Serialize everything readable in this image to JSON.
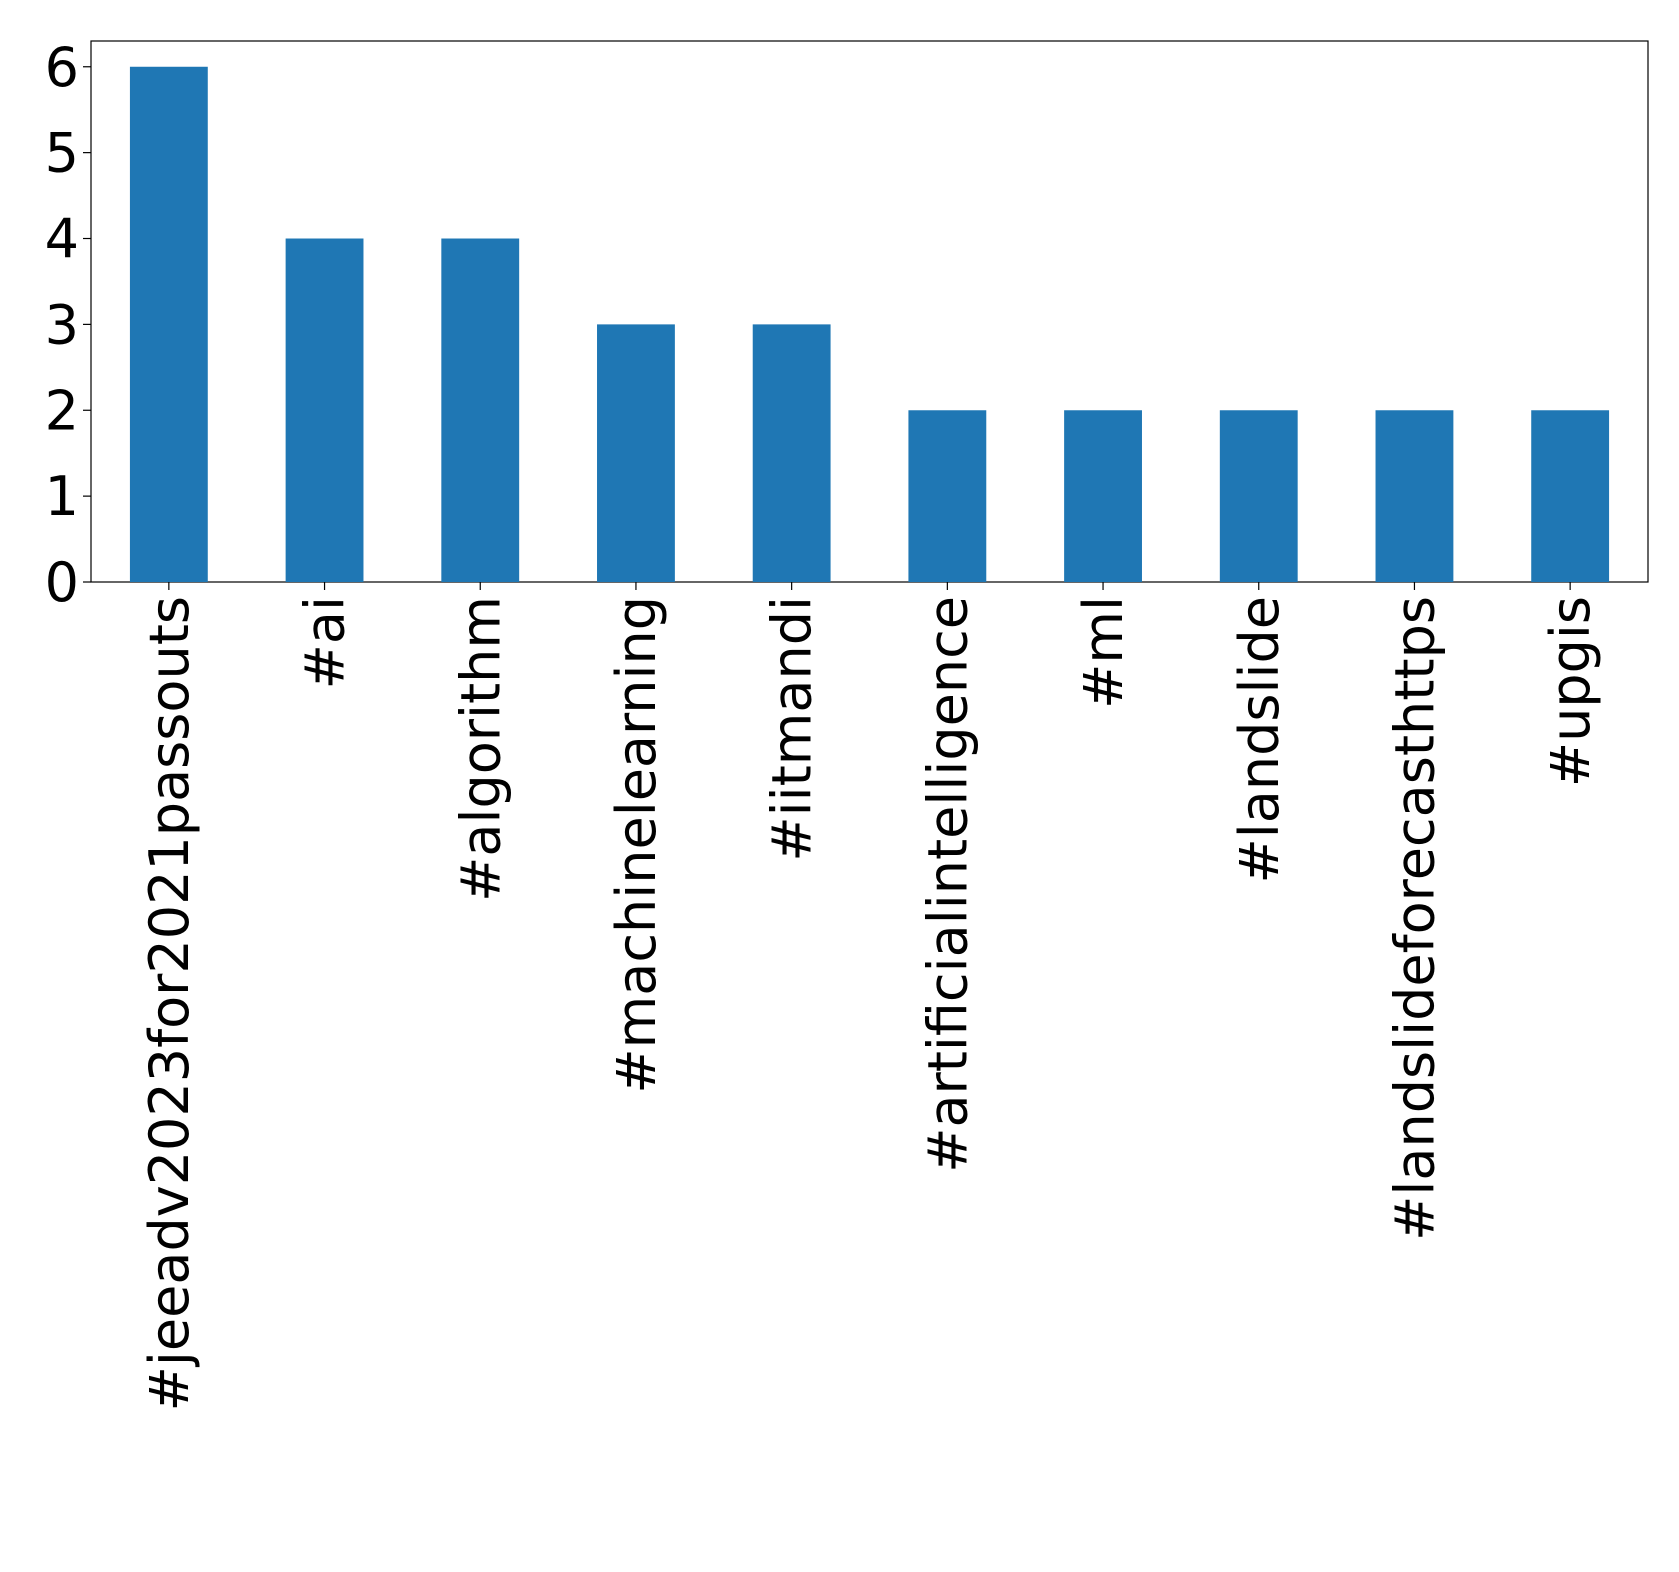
{
  "chart_data": {
    "type": "bar",
    "categories": [
      "#jeeadv2023for2021passouts",
      "#ai",
      "#algorithm",
      "#machinelearning",
      "#iitmandi",
      "#artificialintelligence",
      "#ml",
      "#landslide",
      "#landslideforecasthttps",
      "#upgis"
    ],
    "values": [
      6,
      4,
      4,
      3,
      3,
      2,
      2,
      2,
      2,
      2
    ],
    "color": "#1f77b4",
    "ylim": [
      0,
      6.3
    ],
    "yticks": [
      0,
      1,
      2,
      3,
      4,
      5,
      6
    ],
    "grid": false
  }
}
